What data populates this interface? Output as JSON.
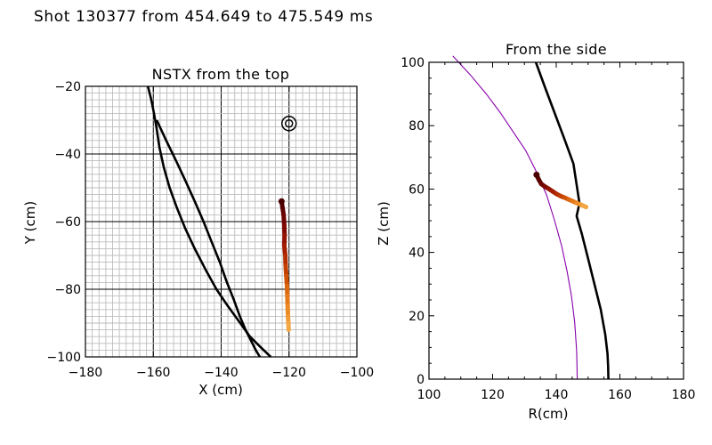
{
  "figure_title": "Shot 130377 from 454.649 to 475.549 ms",
  "chart_data": [
    {
      "type": "line",
      "title": "NSTX from the top",
      "xlabel": "X (cm)",
      "ylabel": "Y (cm)",
      "xlim": [
        -180,
        -100
      ],
      "ylim": [
        -100,
        -20
      ],
      "xticks": [
        -180,
        -160,
        -140,
        -120,
        -100
      ],
      "yticks": [
        -100,
        -80,
        -60,
        -40,
        -20
      ],
      "minor_grid_step": 2,
      "major_grid_step": 20,
      "grid": true,
      "target_marker": {
        "x": -120,
        "y": -31
      },
      "series": [
        {
          "name": "outer-boundary-line",
          "color": "#000000",
          "x": [
            -161.6,
            -160.6,
            -159.8,
            -159.1,
            -158.2,
            -156.9,
            -155.2,
            -153.0,
            -150.6,
            -147.8,
            -144.7,
            -141.4,
            -138.0,
            -134.4,
            -131.5,
            -128.5,
            -125.4
          ],
          "y": [
            -20,
            -24,
            -28,
            -32,
            -38,
            -44,
            -50,
            -56,
            -62,
            -68,
            -74,
            -80,
            -85,
            -90,
            -94,
            -97,
            -100
          ]
        },
        {
          "name": "inner-chord-line",
          "color": "#000000",
          "x": [
            -159.0,
            -156.2,
            -153.3,
            -150.5,
            -147.8,
            -145.2,
            -142.8,
            -140.4,
            -138.3,
            -136.3,
            -134.5,
            -132.8,
            -131.3,
            -129.8,
            -128.6
          ],
          "y": [
            -30,
            -36,
            -42,
            -48,
            -54,
            -60,
            -66,
            -72,
            -78,
            -83,
            -88,
            -92,
            -95,
            -98,
            -100
          ]
        }
      ],
      "trajectory": {
        "x": [
          -122.2,
          -121.9,
          -121.6,
          -121.4,
          -121.3,
          -121.4,
          -121.1,
          -121.0,
          -120.8,
          -120.6,
          -120.5,
          -120.4,
          -120.3,
          -120.2,
          -120.1
        ],
        "y": [
          -54,
          -56,
          -58,
          -61,
          -64,
          -67,
          -70,
          -73,
          -76,
          -79,
          -82,
          -85,
          -88,
          -90,
          -92
        ],
        "colors": [
          "#4a0000",
          "#5c0000",
          "#6e0400",
          "#800a00",
          "#931400",
          "#a51e00",
          "#b52e00",
          "#c23f00",
          "#cf5206",
          "#dc6810",
          "#e5791a",
          "#ec8a25",
          "#f09a34",
          "#f3a744",
          "#f5b456"
        ]
      }
    },
    {
      "type": "line",
      "title": "From the side",
      "xlabel": "R(cm)",
      "ylabel": "Z (cm)",
      "xlim": [
        100,
        180
      ],
      "ylim": [
        0,
        100
      ],
      "xticks": [
        100,
        120,
        140,
        160,
        180
      ],
      "yticks": [
        0,
        20,
        40,
        60,
        80,
        100
      ],
      "grid": false,
      "series": [
        {
          "name": "purple-boundary-arc",
          "color": "#8800aa",
          "x": [
            107.5,
            113.0,
            118.0,
            122.5,
            126.5,
            130.5,
            134.0,
            137.0,
            139.5,
            141.7,
            143.4,
            144.8,
            145.8,
            146.4,
            146.6
          ],
          "y": [
            102,
            96,
            90,
            84,
            78,
            72,
            65,
            58,
            50,
            42,
            34,
            26,
            18,
            9,
            0
          ]
        },
        {
          "name": "black-separatrix-line",
          "color": "#000000",
          "x": [
            133.6,
            136.5,
            139.5,
            142.5,
            145.4,
            147.3,
            146.4,
            148.0,
            150.0,
            152.0,
            154.0,
            155.4,
            156.1,
            156.3,
            156.4
          ],
          "y": [
            100,
            92,
            84,
            76,
            68,
            55.5,
            51.5,
            46,
            38,
            30,
            22,
            14,
            8,
            4,
            0
          ]
        }
      ],
      "trajectory": {
        "x": [
          133.8,
          134.5,
          135.3,
          136.4,
          137.6,
          138.8,
          140.0,
          141.3,
          142.6,
          143.9,
          145.1,
          146.4,
          147.6,
          148.5,
          149.4
        ],
        "y": [
          64.5,
          63.0,
          61.6,
          60.8,
          60.1,
          59.3,
          58.5,
          57.8,
          57.3,
          56.7,
          56.2,
          55.6,
          55.1,
          54.7,
          54.3
        ],
        "colors": [
          "#4a0000",
          "#5c0000",
          "#6e0400",
          "#800a00",
          "#931400",
          "#a51e00",
          "#b52e00",
          "#c23f00",
          "#cf5206",
          "#dc6810",
          "#e5791a",
          "#ec8a25",
          "#f09a34",
          "#f3a744",
          "#f5b456"
        ]
      }
    }
  ]
}
